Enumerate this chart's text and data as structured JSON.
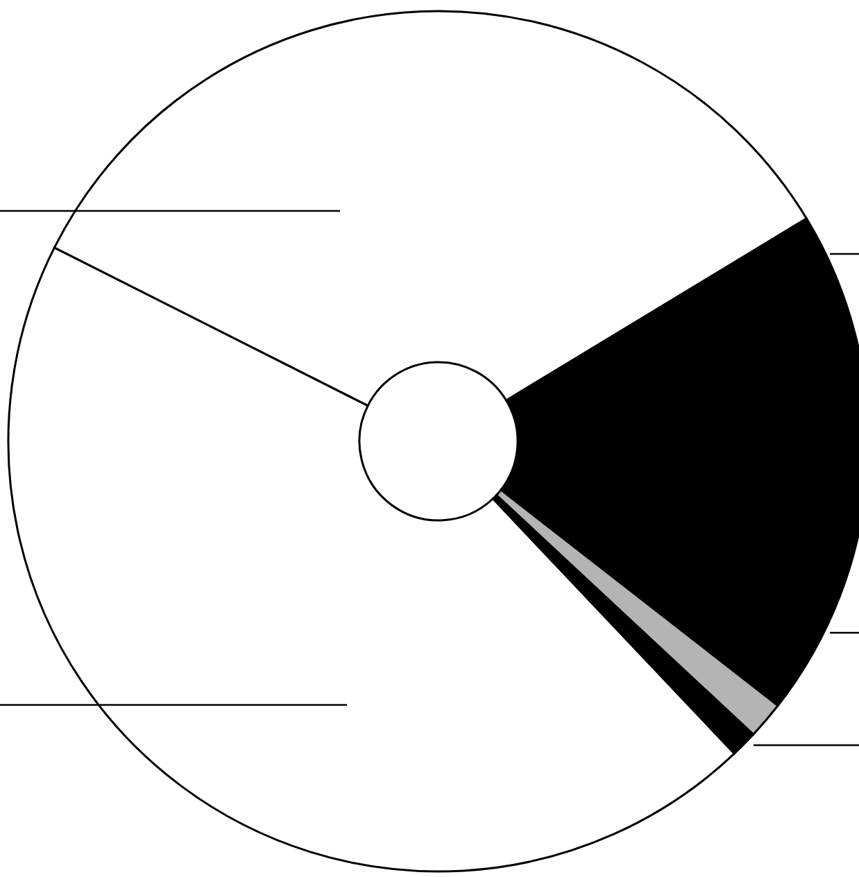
{
  "chart_data": {
    "type": "donut",
    "categories": [
      null,
      null,
      null,
      null,
      null
    ],
    "values": [
      19.2,
      1.4,
      1.0,
      44.5,
      33.9
    ],
    "colors": [
      "#000000",
      "#b4b4b4",
      "#000000",
      "#ffffff",
      "#ffffff"
    ],
    "legend": false
  }
}
